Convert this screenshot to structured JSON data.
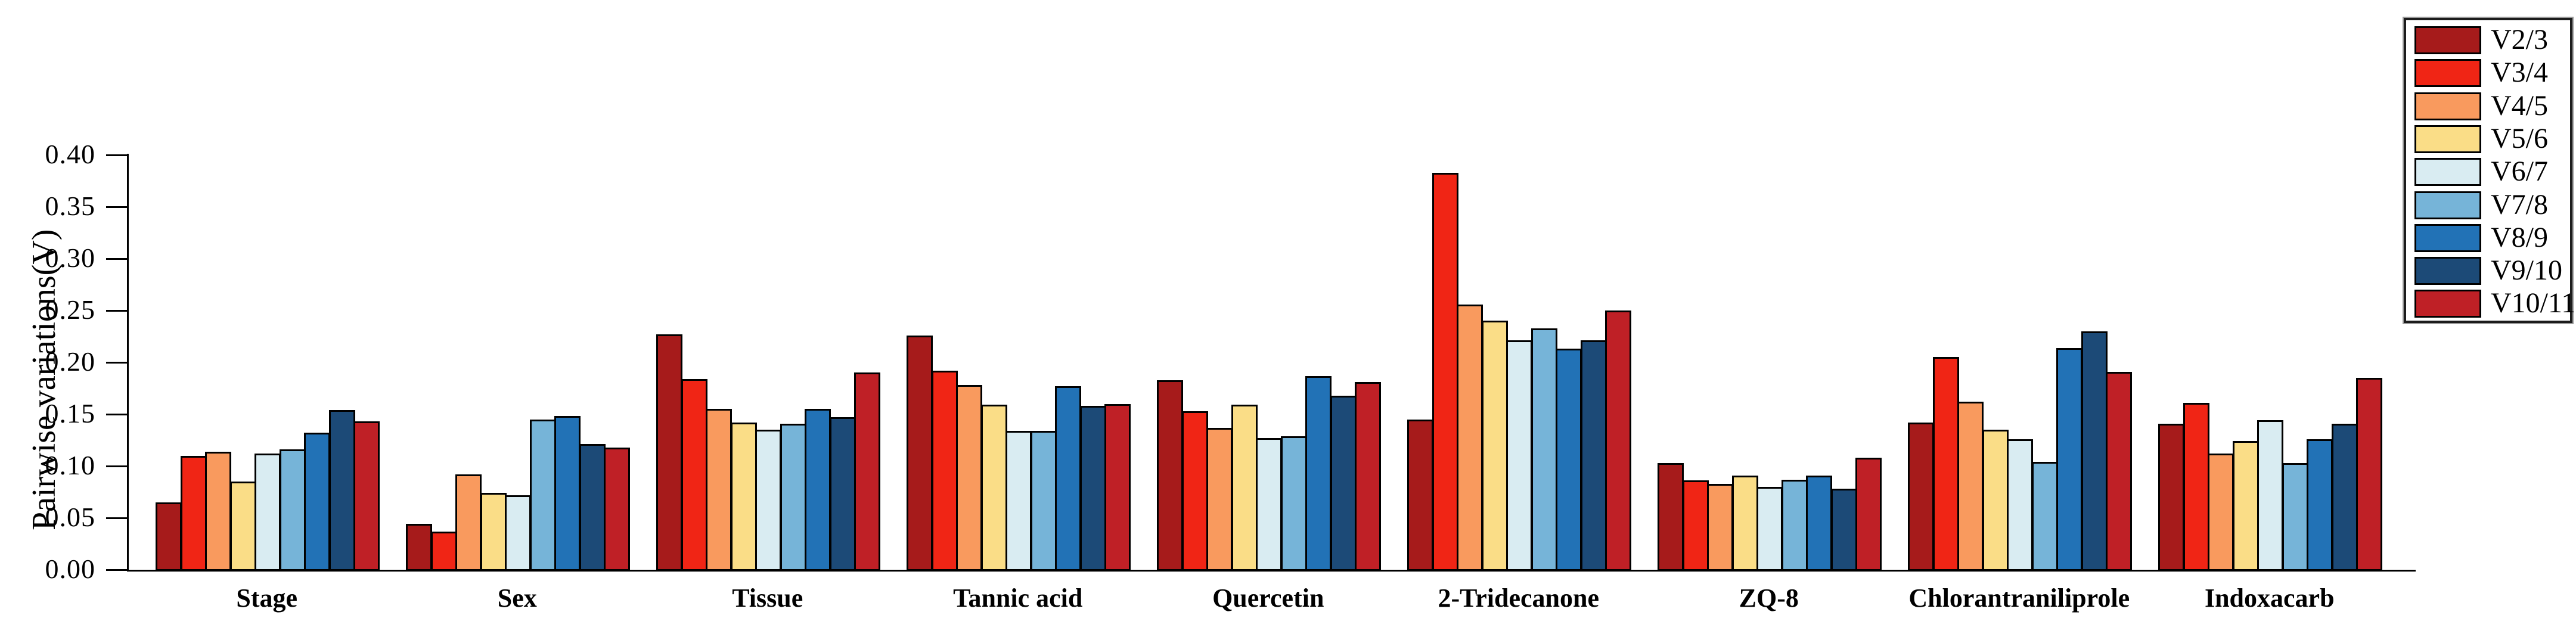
{
  "chart_data": {
    "type": "bar",
    "title": "",
    "xlabel": "",
    "ylabel": "Pairwise variations(V)",
    "ylim": [
      0,
      0.4
    ],
    "ytick_labels": [
      "0.00",
      "0.05",
      "0.10",
      "0.15",
      "0.20",
      "0.25",
      "0.30",
      "0.35",
      "0.40"
    ],
    "grid": false,
    "legend_position": "top-right",
    "categories": [
      "Stage",
      "Sex",
      "Tissue",
      "Tannic acid",
      "Quercetin",
      "2-Tridecanone",
      "ZQ-8",
      "Chlorantraniliprole",
      "Indoxacarb"
    ],
    "series": [
      {
        "name": "V2/3",
        "color": "#A61B1B",
        "values": [
          0.065,
          0.044,
          0.227,
          0.226,
          0.183,
          0.145,
          0.103,
          0.142,
          0.141
        ]
      },
      {
        "name": "V3/4",
        "color": "#F02515",
        "values": [
          0.11,
          0.037,
          0.184,
          0.192,
          0.153,
          0.383,
          0.086,
          0.205,
          0.161
        ]
      },
      {
        "name": "V4/5",
        "color": "#F99A5E",
        "values": [
          0.114,
          0.092,
          0.155,
          0.178,
          0.137,
          0.256,
          0.083,
          0.162,
          0.112
        ]
      },
      {
        "name": "V5/6",
        "color": "#FADD87",
        "values": [
          0.085,
          0.074,
          0.142,
          0.159,
          0.159,
          0.24,
          0.091,
          0.135,
          0.124
        ]
      },
      {
        "name": "V6/7",
        "color": "#D9ECF2",
        "values": [
          0.112,
          0.072,
          0.135,
          0.134,
          0.127,
          0.221,
          0.08,
          0.126,
          0.144
        ]
      },
      {
        "name": "V7/8",
        "color": "#76B4D8",
        "values": [
          0.116,
          0.145,
          0.141,
          0.134,
          0.129,
          0.233,
          0.087,
          0.104,
          0.103
        ]
      },
      {
        "name": "V8/9",
        "color": "#2272B6",
        "values": [
          0.132,
          0.148,
          0.155,
          0.177,
          0.187,
          0.213,
          0.091,
          0.214,
          0.126
        ]
      },
      {
        "name": "V9/10",
        "color": "#1C4A77",
        "values": [
          0.154,
          0.121,
          0.147,
          0.158,
          0.168,
          0.221,
          0.078,
          0.23,
          0.141
        ]
      },
      {
        "name": "V10/11",
        "color": "#BF2026",
        "values": [
          0.143,
          0.118,
          0.19,
          0.16,
          0.181,
          0.25,
          0.108,
          0.191,
          0.185
        ]
      }
    ]
  }
}
